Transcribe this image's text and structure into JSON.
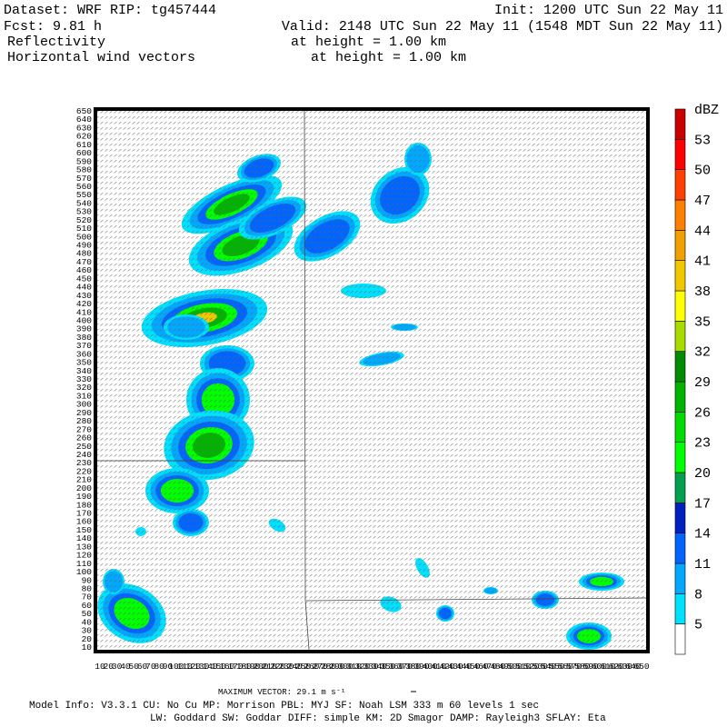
{
  "header": {
    "dataset": "Dataset: WRF  RIP: tg457444",
    "init": "Init: 1200 UTC Sun 22 May 11",
    "fcst": "Fcst:    9.81 h",
    "valid": "Valid: 2148 UTC Sun 22 May 11 (1548 MDT Sun 22 May 11)",
    "field1": "Reflectivity",
    "field1_level": "at height =  1.00 km",
    "field2": "Horizontal wind vectors",
    "field2_level": "at height =  1.00 km"
  },
  "axes": {
    "yticks": [
      10,
      20,
      30,
      40,
      50,
      60,
      70,
      80,
      90,
      100,
      110,
      120,
      130,
      140,
      150,
      160,
      170,
      180,
      190,
      200,
      210,
      220,
      230,
      240,
      250,
      260,
      270,
      280,
      290,
      300,
      310,
      320,
      330,
      340,
      350,
      360,
      370,
      380,
      390,
      400,
      410,
      420,
      430,
      440,
      450,
      460,
      470,
      480,
      490,
      500,
      510,
      520,
      530,
      540,
      550,
      560,
      570,
      580,
      590,
      600,
      610,
      620,
      630,
      640,
      650
    ],
    "xticks": [
      10,
      20,
      30,
      40,
      50,
      60,
      70,
      80,
      90,
      100,
      110,
      120,
      130,
      140,
      150,
      160,
      170,
      180,
      190,
      200,
      210,
      220,
      230,
      240,
      250,
      260,
      270,
      280,
      290,
      300,
      310,
      320,
      330,
      340,
      350,
      360,
      370,
      380,
      390,
      400,
      410,
      420,
      430,
      440,
      450,
      460,
      470,
      480,
      490,
      500,
      510,
      520,
      530,
      540,
      550,
      560,
      570,
      580,
      590,
      600,
      610,
      620,
      630,
      640,
      650
    ],
    "lim": [
      10,
      650
    ]
  },
  "colorbar": {
    "unit": "dBZ",
    "levels": [
      5,
      8,
      11,
      14,
      17,
      20,
      23,
      26,
      29,
      32,
      35,
      38,
      41,
      44,
      47,
      50,
      53
    ],
    "colors": [
      "#ffffff",
      "#00e0ff",
      "#00a8ff",
      "#0064ff",
      "#0020c0",
      "#00a050",
      "#00ff00",
      "#00dc00",
      "#00b400",
      "#008c00",
      "#a8dc00",
      "#ffff00",
      "#f0c800",
      "#f0a000",
      "#ff8000",
      "#ff4000",
      "#ff0000",
      "#c80000"
    ]
  },
  "footer": {
    "max_vector": "MAXIMUM VECTOR:  29.1 m s⁻¹",
    "model_info": "Model Info: V3.3.1    CU: No Cu    MP: Morrison     PBL: MYJ       SF: Noah LSM     333 m    60 levels     1 sec",
    "model_info2": "LW: Goddard SW: Goddar DIFF: simple KM: 2D Smagor DAMP: Rayleigh3  SFLAY: Eta"
  }
}
